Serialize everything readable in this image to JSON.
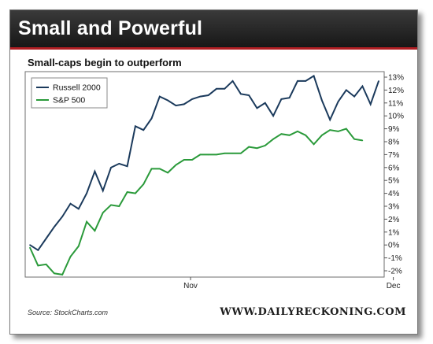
{
  "banner": {
    "title": "Small and Powerful"
  },
  "footer": {
    "source": "Source: StockCharts.com",
    "brand": "WWW.DAILYRECKONING.COM"
  },
  "colors": {
    "russell": "#1b3a5c",
    "sp500": "#2a9a3a",
    "banner_accent": "#b01e23"
  },
  "chart_data": {
    "type": "line",
    "title": "Small-caps begin to outperform",
    "xlabel": "",
    "ylabel": "",
    "ylim": [
      -2,
      13
    ],
    "yticks": [
      "13%",
      "12%",
      "11%",
      "10%",
      "9%",
      "8%",
      "7%",
      "6%",
      "5%",
      "4%",
      "3%",
      "2%",
      "1%",
      "0%",
      "-1%",
      "-2%"
    ],
    "ytick_values": [
      13,
      12,
      11,
      10,
      9,
      8,
      7,
      6,
      5,
      4,
      3,
      2,
      1,
      0,
      -1,
      -2
    ],
    "xticks": [
      {
        "label": "Nov",
        "index": 20
      },
      {
        "label": "Dec",
        "index": 45
      }
    ],
    "grid": false,
    "legend_position": "top-left",
    "series": [
      {
        "name": "Russell 2000",
        "color": "#1b3a5c",
        "values": [
          0.0,
          -0.4,
          0.5,
          1.4,
          2.2,
          3.2,
          2.8,
          4.0,
          5.7,
          4.2,
          6.0,
          6.3,
          6.1,
          9.2,
          8.9,
          9.8,
          11.5,
          11.2,
          10.8,
          10.9,
          11.3,
          11.5,
          11.6,
          12.1,
          12.1,
          12.7,
          11.7,
          11.6,
          10.6,
          11.0,
          10.0,
          11.3,
          11.4,
          12.7,
          12.7,
          13.1,
          11.2,
          9.7,
          11.1,
          12.0,
          11.5,
          12.3,
          10.9,
          12.7
        ]
      },
      {
        "name": "S&P 500",
        "color": "#2a9a3a",
        "values": [
          -0.2,
          -1.6,
          -1.5,
          -2.2,
          -2.3,
          -0.9,
          -0.1,
          1.8,
          1.1,
          2.5,
          3.1,
          3.0,
          4.1,
          4.0,
          4.7,
          5.9,
          5.9,
          5.6,
          6.2,
          6.6,
          6.6,
          7.0,
          7.0,
          7.0,
          7.1,
          7.1,
          7.1,
          7.6,
          7.5,
          7.7,
          8.2,
          8.6,
          8.5,
          8.8,
          8.5,
          7.8,
          8.5,
          8.9,
          8.8,
          9.0,
          8.2,
          8.1
        ]
      }
    ]
  }
}
